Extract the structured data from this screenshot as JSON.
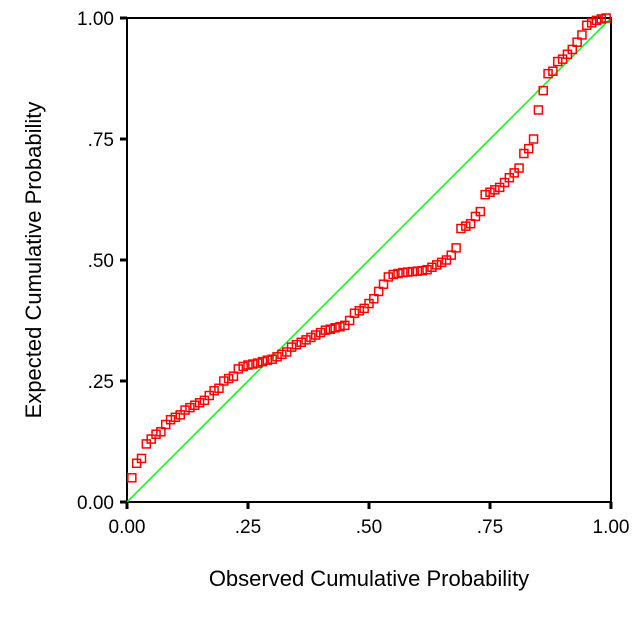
{
  "chart_data": {
    "type": "scatter",
    "title": "",
    "xlabel": "Observed Cumulative Probability",
    "ylabel": "Expected Cumulative Probability",
    "xlim": [
      0,
      1
    ],
    "ylim": [
      0,
      1
    ],
    "x_ticks": [
      {
        "value": 0,
        "label": "0.00"
      },
      {
        "value": 0.25,
        "label": ".25"
      },
      {
        "value": 0.5,
        "label": ".50"
      },
      {
        "value": 0.75,
        "label": ".75"
      },
      {
        "value": 1,
        "label": "1.00"
      }
    ],
    "y_ticks": [
      {
        "value": 0,
        "label": "0.00"
      },
      {
        "value": 0.25,
        "label": ".25"
      },
      {
        "value": 0.5,
        "label": ".50"
      },
      {
        "value": 0.75,
        "label": ".75"
      },
      {
        "value": 1,
        "label": "1.00"
      }
    ],
    "grid": false,
    "legend": "none",
    "reference_line": {
      "from": [
        0,
        0
      ],
      "to": [
        1,
        1
      ],
      "color": "#00ff00"
    },
    "marker_color": "#ff0000",
    "points": [
      [
        0.01,
        0.05
      ],
      [
        0.02,
        0.08
      ],
      [
        0.03,
        0.09
      ],
      [
        0.04,
        0.12
      ],
      [
        0.05,
        0.13
      ],
      [
        0.06,
        0.14
      ],
      [
        0.07,
        0.145
      ],
      [
        0.08,
        0.16
      ],
      [
        0.09,
        0.17
      ],
      [
        0.1,
        0.175
      ],
      [
        0.11,
        0.18
      ],
      [
        0.12,
        0.19
      ],
      [
        0.13,
        0.195
      ],
      [
        0.14,
        0.2
      ],
      [
        0.15,
        0.205
      ],
      [
        0.16,
        0.21
      ],
      [
        0.17,
        0.22
      ],
      [
        0.18,
        0.23
      ],
      [
        0.19,
        0.235
      ],
      [
        0.2,
        0.25
      ],
      [
        0.21,
        0.255
      ],
      [
        0.22,
        0.26
      ],
      [
        0.23,
        0.275
      ],
      [
        0.24,
        0.28
      ],
      [
        0.25,
        0.283
      ],
      [
        0.26,
        0.285
      ],
      [
        0.27,
        0.287
      ],
      [
        0.28,
        0.29
      ],
      [
        0.29,
        0.293
      ],
      [
        0.3,
        0.295
      ],
      [
        0.31,
        0.3
      ],
      [
        0.32,
        0.305
      ],
      [
        0.33,
        0.31
      ],
      [
        0.34,
        0.32
      ],
      [
        0.35,
        0.325
      ],
      [
        0.36,
        0.33
      ],
      [
        0.37,
        0.335
      ],
      [
        0.38,
        0.34
      ],
      [
        0.39,
        0.345
      ],
      [
        0.4,
        0.35
      ],
      [
        0.41,
        0.355
      ],
      [
        0.42,
        0.357
      ],
      [
        0.43,
        0.36
      ],
      [
        0.44,
        0.362
      ],
      [
        0.45,
        0.365
      ],
      [
        0.46,
        0.375
      ],
      [
        0.47,
        0.39
      ],
      [
        0.48,
        0.395
      ],
      [
        0.49,
        0.4
      ],
      [
        0.5,
        0.41
      ],
      [
        0.51,
        0.42
      ],
      [
        0.52,
        0.435
      ],
      [
        0.53,
        0.45
      ],
      [
        0.54,
        0.465
      ],
      [
        0.55,
        0.47
      ],
      [
        0.56,
        0.472
      ],
      [
        0.57,
        0.474
      ],
      [
        0.58,
        0.475
      ],
      [
        0.59,
        0.476
      ],
      [
        0.6,
        0.477
      ],
      [
        0.61,
        0.478
      ],
      [
        0.62,
        0.48
      ],
      [
        0.63,
        0.485
      ],
      [
        0.64,
        0.49
      ],
      [
        0.65,
        0.495
      ],
      [
        0.66,
        0.5
      ],
      [
        0.67,
        0.51
      ],
      [
        0.68,
        0.525
      ],
      [
        0.69,
        0.565
      ],
      [
        0.7,
        0.57
      ],
      [
        0.71,
        0.575
      ],
      [
        0.72,
        0.59
      ],
      [
        0.73,
        0.6
      ],
      [
        0.74,
        0.635
      ],
      [
        0.75,
        0.64
      ],
      [
        0.76,
        0.645
      ],
      [
        0.77,
        0.65
      ],
      [
        0.78,
        0.66
      ],
      [
        0.79,
        0.67
      ],
      [
        0.8,
        0.68
      ],
      [
        0.81,
        0.69
      ],
      [
        0.82,
        0.72
      ],
      [
        0.83,
        0.73
      ],
      [
        0.84,
        0.75
      ],
      [
        0.85,
        0.81
      ],
      [
        0.86,
        0.85
      ],
      [
        0.87,
        0.885
      ],
      [
        0.88,
        0.89
      ],
      [
        0.89,
        0.91
      ],
      [
        0.9,
        0.915
      ],
      [
        0.91,
        0.925
      ],
      [
        0.92,
        0.935
      ],
      [
        0.93,
        0.95
      ],
      [
        0.94,
        0.965
      ],
      [
        0.95,
        0.985
      ],
      [
        0.96,
        0.99
      ],
      [
        0.97,
        0.995
      ],
      [
        0.98,
        0.998
      ],
      [
        0.99,
        1.0
      ]
    ]
  }
}
